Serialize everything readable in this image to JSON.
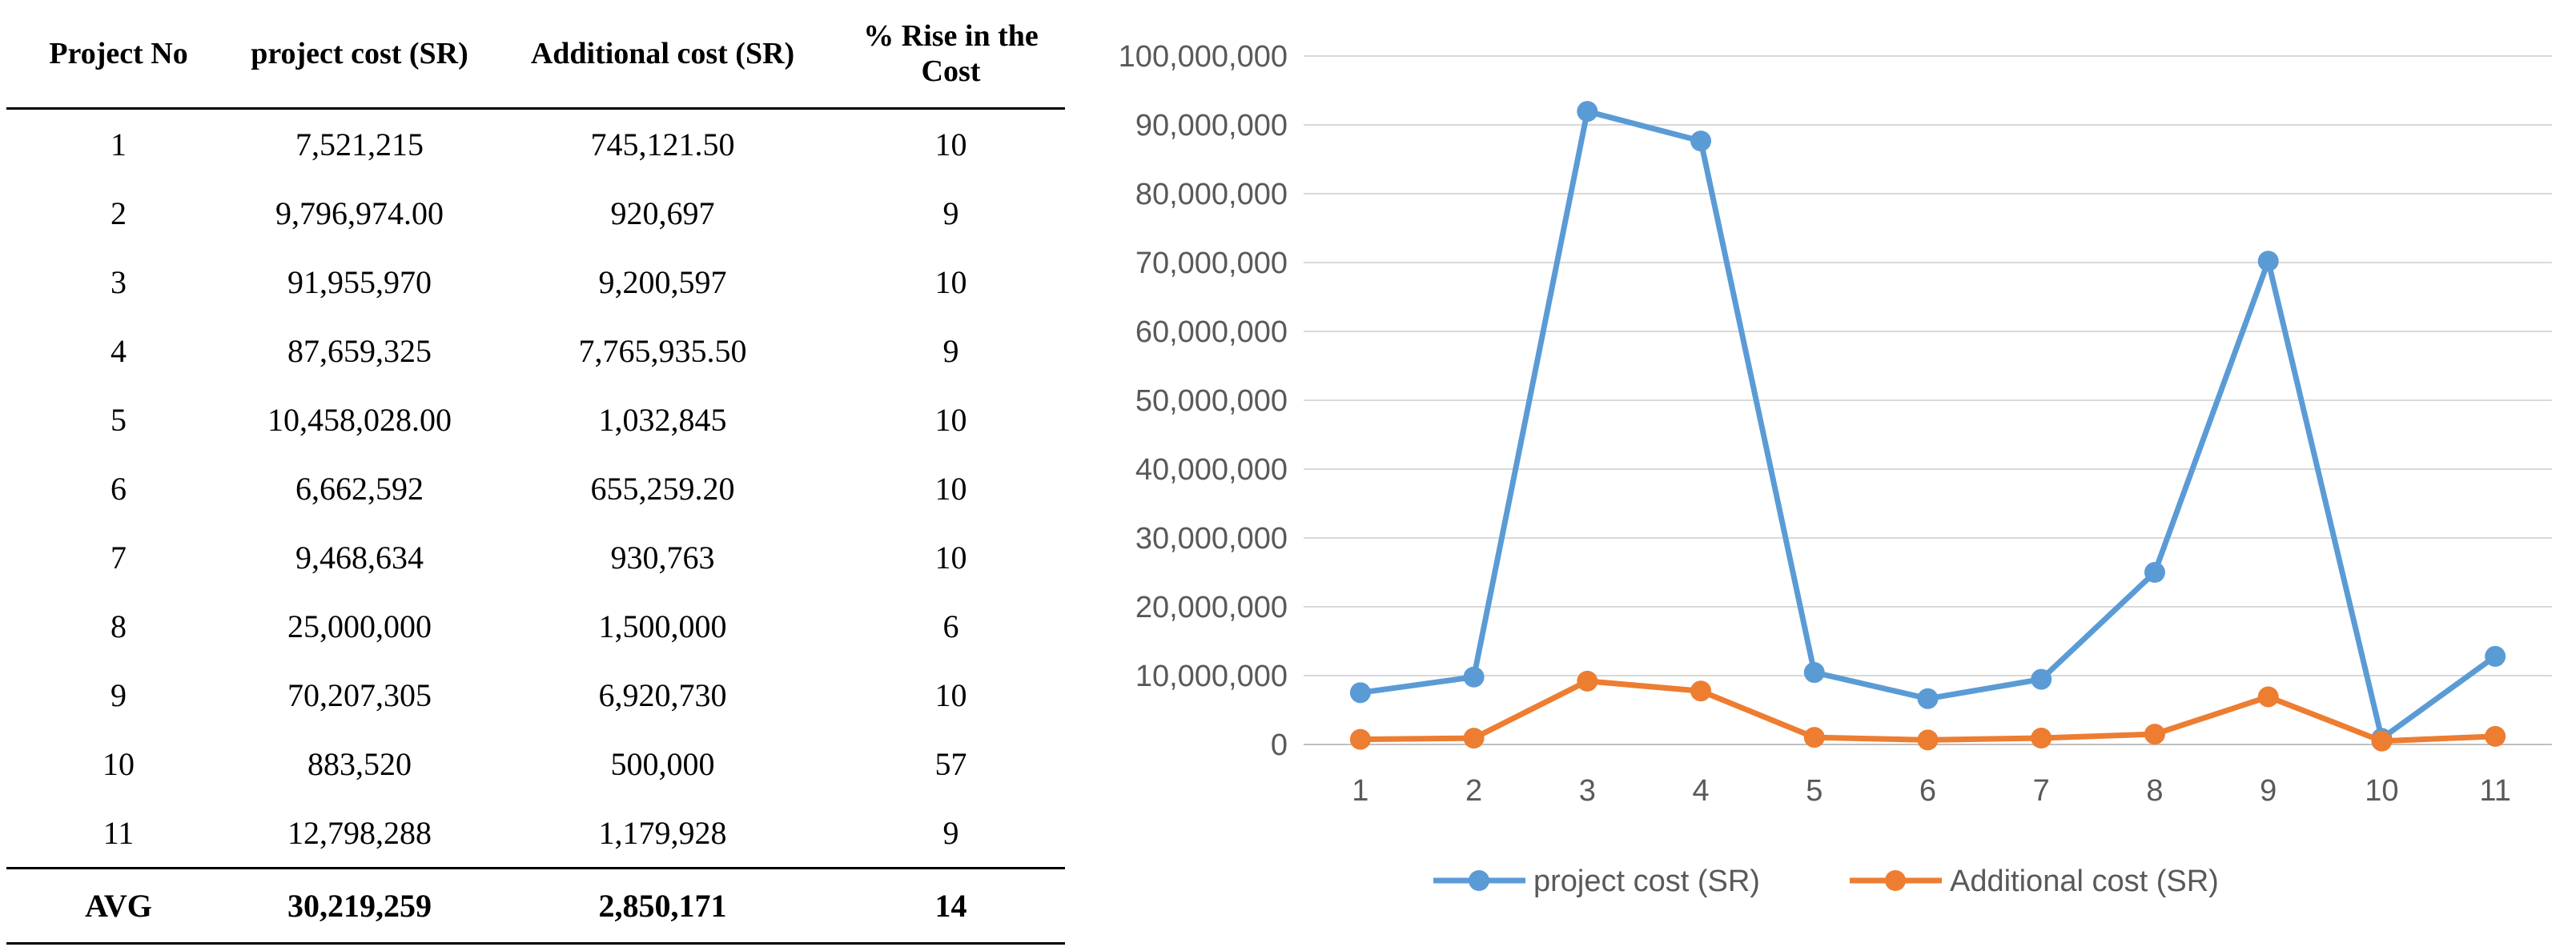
{
  "table": {
    "headers": [
      "Project No",
      "project cost (SR)",
      "Additional cost (SR)",
      "% Rise in the Cost"
    ],
    "rows": [
      [
        "1",
        "7,521,215",
        "745,121.50",
        "10"
      ],
      [
        "2",
        "9,796,974.00",
        "920,697",
        "9"
      ],
      [
        "3",
        "91,955,970",
        "9,200,597",
        "10"
      ],
      [
        "4",
        "87,659,325",
        "7,765,935.50",
        "9"
      ],
      [
        "5",
        "10,458,028.00",
        "1,032,845",
        "10"
      ],
      [
        "6",
        "6,662,592",
        "655,259.20",
        "10"
      ],
      [
        "7",
        "9,468,634",
        "930,763",
        "10"
      ],
      [
        "8",
        "25,000,000",
        "1,500,000",
        "6"
      ],
      [
        "9",
        "70,207,305",
        "6,920,730",
        "10"
      ],
      [
        "10",
        "883,520",
        "500,000",
        "57"
      ],
      [
        "11",
        "12,798,288",
        "1,179,928",
        "9"
      ]
    ],
    "footer": [
      "AVG",
      "30,219,259",
      "2,850,171",
      "14"
    ]
  },
  "chart_data": {
    "type": "line",
    "title": "",
    "xlabel": "",
    "ylabel": "",
    "categories": [
      "1",
      "2",
      "3",
      "4",
      "5",
      "6",
      "7",
      "8",
      "9",
      "10",
      "11"
    ],
    "ylim": [
      0,
      100000000
    ],
    "yticks": [
      0,
      10000000,
      20000000,
      30000000,
      40000000,
      50000000,
      60000000,
      70000000,
      80000000,
      90000000,
      100000000
    ],
    "ytick_labels": [
      "0",
      "10,000,000",
      "20,000,000",
      "30,000,000",
      "40,000,000",
      "50,000,000",
      "60,000,000",
      "70,000,000",
      "80,000,000",
      "90,000,000",
      "100,000,000"
    ],
    "grid": true,
    "legend_position": "bottom",
    "series": [
      {
        "name": "project cost (SR)",
        "color": "#5B9BD5",
        "values": [
          7521215,
          9796974,
          91955970,
          87659325,
          10458028,
          6662592,
          9468634,
          25000000,
          70207305,
          883520,
          12798288
        ]
      },
      {
        "name": "Additional cost (SR)",
        "color": "#ED7D31",
        "values": [
          745121.5,
          920697,
          9200597,
          7765935.5,
          1032845,
          655259.2,
          930763,
          1500000,
          6920730,
          500000,
          1179928
        ]
      }
    ]
  }
}
